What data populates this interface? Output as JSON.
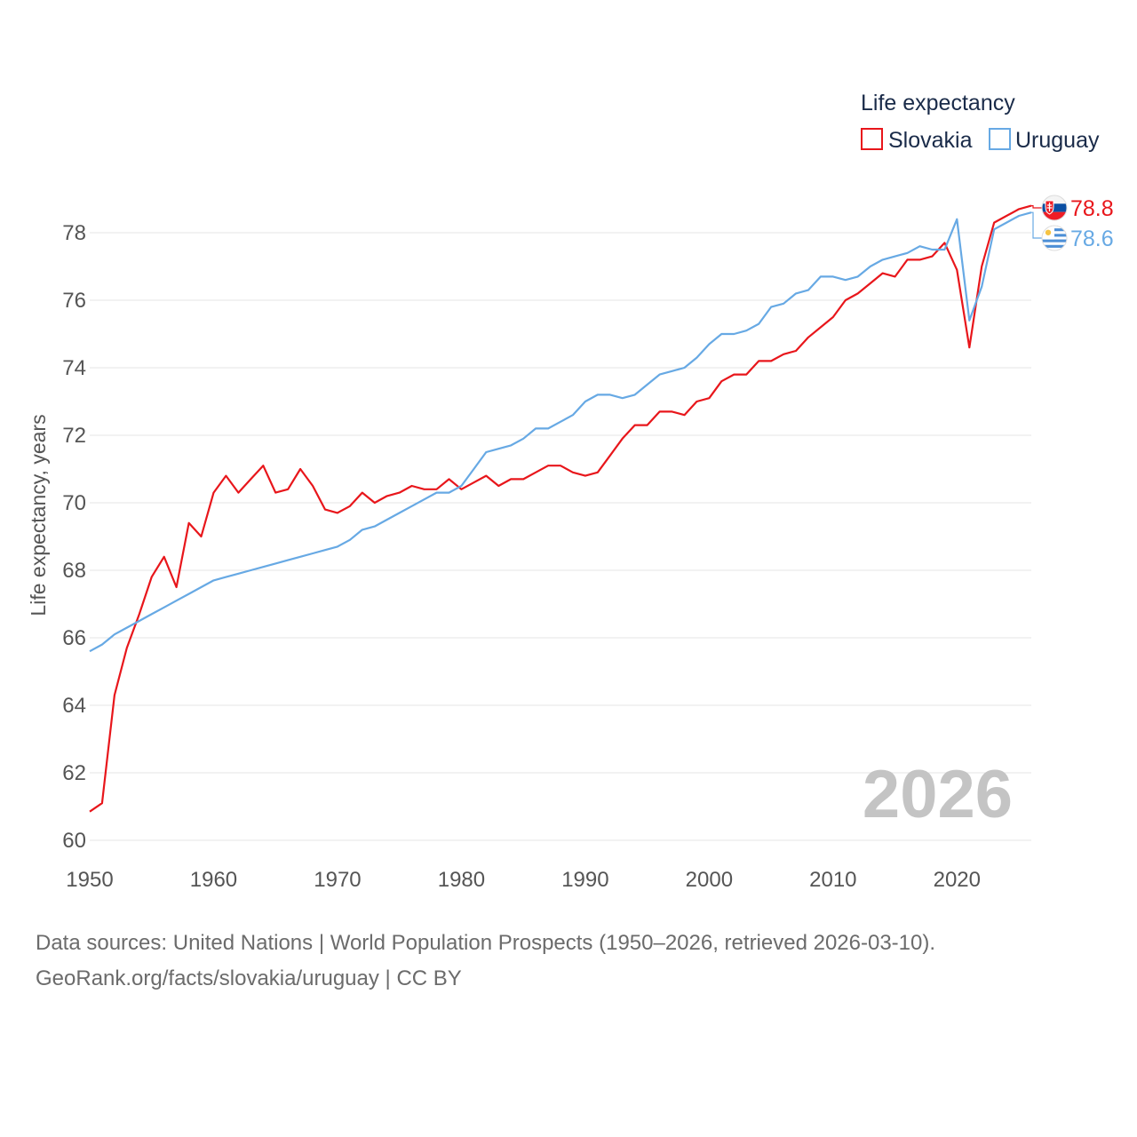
{
  "chart_data": {
    "type": "line",
    "ylabel": "Life expectancy, years",
    "xlabel": "",
    "xlim": [
      1950,
      2026
    ],
    "ylim": [
      59.5,
      79.5
    ],
    "x_ticks": [
      1950,
      1960,
      1970,
      1980,
      1990,
      2000,
      2010,
      2020
    ],
    "y_ticks": [
      60,
      62,
      64,
      66,
      68,
      70,
      72,
      74,
      76,
      78
    ],
    "legend_title": "Life expectancy",
    "legend_position": "top-right",
    "current_year_label": "2026",
    "x": [
      1950,
      1951,
      1952,
      1953,
      1954,
      1955,
      1956,
      1957,
      1958,
      1959,
      1960,
      1961,
      1962,
      1963,
      1964,
      1965,
      1966,
      1967,
      1968,
      1969,
      1970,
      1971,
      1972,
      1973,
      1974,
      1975,
      1976,
      1977,
      1978,
      1979,
      1980,
      1981,
      1982,
      1983,
      1984,
      1985,
      1986,
      1987,
      1988,
      1989,
      1990,
      1991,
      1992,
      1993,
      1994,
      1995,
      1996,
      1997,
      1998,
      1999,
      2000,
      2001,
      2002,
      2003,
      2004,
      2005,
      2006,
      2007,
      2008,
      2009,
      2010,
      2011,
      2012,
      2013,
      2014,
      2015,
      2016,
      2017,
      2018,
      2019,
      2020,
      2021,
      2022,
      2023,
      2024,
      2025,
      2026
    ],
    "series": [
      {
        "name": "Slovakia",
        "color": "#e8161b",
        "icon": "slovakia-flag-icon",
        "end_value_label": "78.8",
        "values": [
          60.85,
          61.1,
          64.3,
          65.7,
          66.7,
          67.8,
          68.4,
          67.5,
          69.4,
          69.0,
          70.3,
          70.8,
          70.3,
          70.7,
          71.1,
          70.3,
          70.4,
          71.0,
          70.5,
          69.8,
          69.7,
          69.9,
          70.3,
          70.0,
          70.2,
          70.3,
          70.5,
          70.4,
          70.4,
          70.7,
          70.4,
          70.6,
          70.8,
          70.5,
          70.7,
          70.7,
          70.9,
          71.1,
          71.1,
          70.9,
          70.8,
          70.9,
          71.4,
          71.9,
          72.3,
          72.3,
          72.7,
          72.7,
          72.6,
          73.0,
          73.1,
          73.6,
          73.8,
          73.8,
          74.2,
          74.2,
          74.4,
          74.5,
          74.9,
          75.2,
          75.5,
          76.0,
          76.2,
          76.5,
          76.8,
          76.7,
          77.2,
          77.2,
          77.3,
          77.7,
          76.9,
          74.6,
          77.0,
          78.3,
          78.5,
          78.7,
          78.8
        ]
      },
      {
        "name": "Uruguay",
        "color": "#67a9e4",
        "icon": "uruguay-flag-icon",
        "end_value_label": "78.6",
        "values": [
          65.6,
          65.8,
          66.1,
          66.3,
          66.5,
          66.7,
          66.9,
          67.1,
          67.3,
          67.5,
          67.7,
          67.8,
          67.9,
          68.0,
          68.1,
          68.2,
          68.3,
          68.4,
          68.5,
          68.6,
          68.7,
          68.9,
          69.2,
          69.3,
          69.5,
          69.7,
          69.9,
          70.1,
          70.3,
          70.3,
          70.5,
          71.0,
          71.5,
          71.6,
          71.7,
          71.9,
          72.2,
          72.2,
          72.4,
          72.6,
          73.0,
          73.2,
          73.2,
          73.1,
          73.2,
          73.5,
          73.8,
          73.9,
          74.0,
          74.3,
          74.7,
          75.0,
          75.0,
          75.1,
          75.3,
          75.8,
          75.9,
          76.2,
          76.3,
          76.7,
          76.7,
          76.6,
          76.7,
          77.0,
          77.2,
          77.3,
          77.4,
          77.6,
          77.5,
          77.5,
          78.4,
          75.4,
          76.4,
          78.1,
          78.3,
          78.5,
          78.6
        ]
      }
    ]
  },
  "source": {
    "line1": "Data sources: United Nations | World Population Prospects (1950–2026, retrieved 2026-03-10).",
    "line2": "GeoRank.org/facts/slovakia/uruguay | CC BY"
  }
}
